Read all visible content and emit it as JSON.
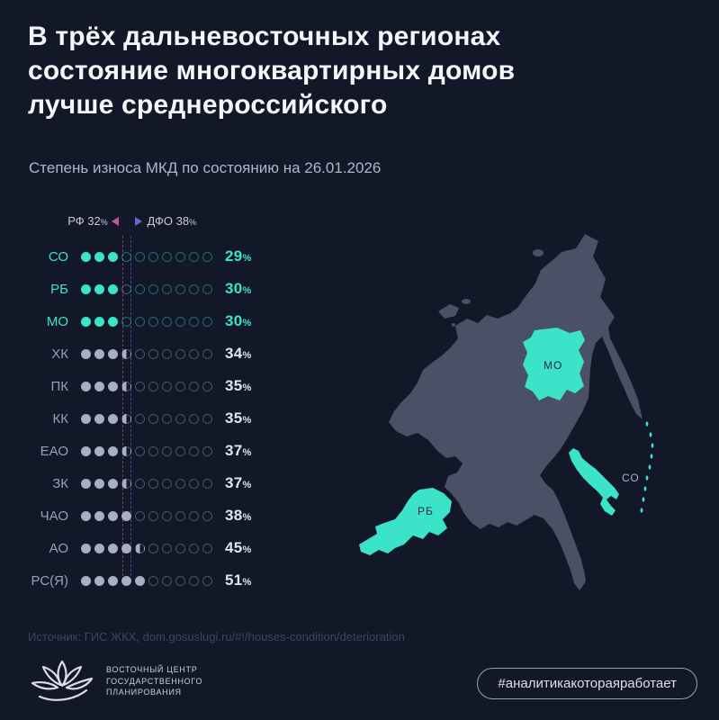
{
  "header": {
    "title": "В трёх дальневосточных регионах состояние многоквартирных домов лучше среднероссийского",
    "title_lines": [
      "В трёх дальневосточных регионах",
      "состояние многоквартирных домов",
      "лучше среднероссийского"
    ],
    "subtitle": "Степень износа МКД по состоянию на 26.01.2026"
  },
  "chart_data": {
    "type": "bar",
    "title": "Степень износа МКД по состоянию на 26.01.2026",
    "unit": "%",
    "xlim": [
      0,
      100
    ],
    "percent_per_dot": 10,
    "categories": [
      "СО",
      "РБ",
      "МО",
      "ХК",
      "ПК",
      "КК",
      "ЕАО",
      "ЗК",
      "ЧАО",
      "АО",
      "РС(Я)"
    ],
    "values": [
      29,
      30,
      30,
      34,
      35,
      35,
      37,
      37,
      38,
      45,
      51
    ],
    "rows": [
      {
        "label": "СО",
        "value": 29,
        "highlight": true
      },
      {
        "label": "РБ",
        "value": 30,
        "highlight": true
      },
      {
        "label": "МО",
        "value": 30,
        "highlight": true
      },
      {
        "label": "ХК",
        "value": 34,
        "highlight": false
      },
      {
        "label": "ПК",
        "value": 35,
        "highlight": false
      },
      {
        "label": "КК",
        "value": 35,
        "highlight": false
      },
      {
        "label": "ЕАО",
        "value": 37,
        "highlight": false
      },
      {
        "label": "ЗК",
        "value": 37,
        "highlight": false
      },
      {
        "label": "ЧАО",
        "value": 38,
        "highlight": false
      },
      {
        "label": "АО",
        "value": 45,
        "highlight": false
      },
      {
        "label": "РС(Я)",
        "value": 51,
        "highlight": false
      }
    ],
    "reference_lines": [
      {
        "label": "РФ",
        "value": 32
      },
      {
        "label": "ДФО",
        "value": 38
      }
    ],
    "legend_position": "top"
  },
  "map": {
    "regions": [
      {
        "code": "МО"
      },
      {
        "code": "СО"
      },
      {
        "code": "РБ"
      }
    ]
  },
  "footer": {
    "source": "Источник: ГИС ЖКХ, dom.gosuslugi.ru/#!/houses-condition/deterioration",
    "logo_lines": [
      "ВОСТОЧНЫЙ ЦЕНТР",
      "ГОСУДАРСТВЕННОГО",
      "ПЛАНИРОВАНИЯ"
    ],
    "hashtag": "#аналитикакотораяработает"
  },
  "colors": {
    "background": "#131828",
    "accent_cyan": "#3BE3C8",
    "muted_dot": "#A7AFC4",
    "rf_line_pink": "#C4569B",
    "dfo_line_purple": "#6E65D2",
    "map_base": "#4A5166",
    "map_label_dark": "#20294A"
  }
}
